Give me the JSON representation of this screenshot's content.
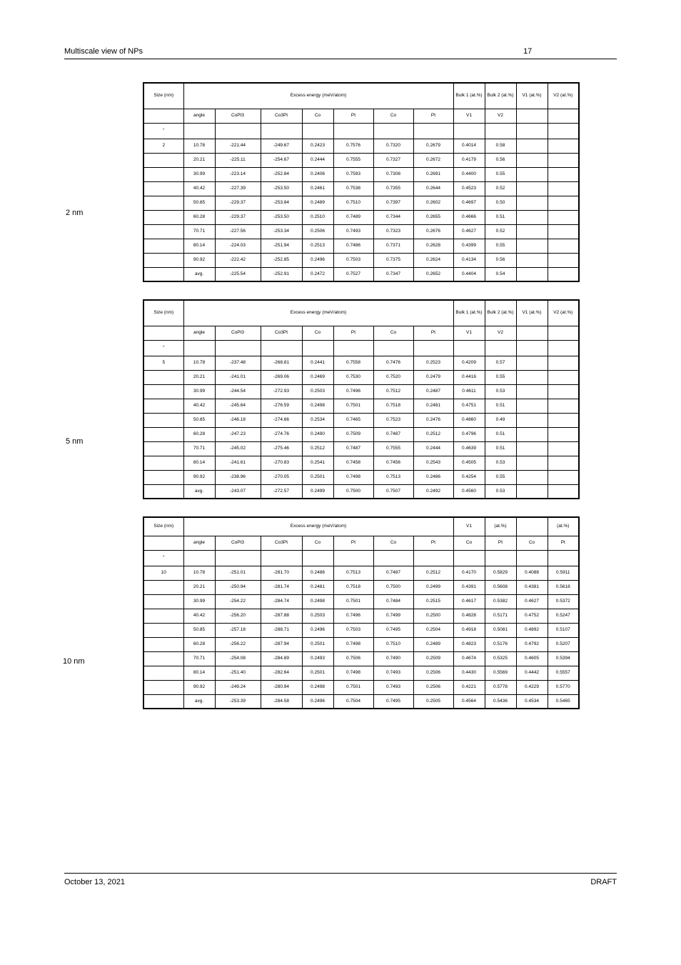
{
  "header": {
    "short_title": "Multiscale view of NPs",
    "page_number": "17"
  },
  "footer": {
    "date": "October 13, 2021",
    "label": "DRAFT"
  },
  "common": {
    "degree_header_html": "°",
    "angle10": "10.78",
    "angle20": "20.21",
    "angle30": "30.99",
    "angle40": "40.42",
    "angle50": "50.85",
    "angle60": "60.28",
    "angle70": "70.71",
    "angle80": "80.14",
    "angle90": "90.92"
  },
  "table2": {
    "caption_label": "2 nm",
    "h_size": "Size (nm)",
    "h_excess": "Excess energy (meV/atom)",
    "h_bulk1": "Bulk 1 (at.%)",
    "h_bulk2": "Bulk 2 (at.%)",
    "h_v1": "V1 (at.%)",
    "h_v2": "V2 (at.%)",
    "subh_angle": "angle",
    "subh_CoPt3": "CoPt3",
    "subh_Co3Pt": "Co3Pt",
    "subh_b1Co": "Co",
    "subh_b1Pt": "Pt",
    "subh_b2Co": "Co",
    "subh_b2Pt": "Pt",
    "subh_v1": "V1",
    "subh_v2": "V2",
    "rows": [
      {
        "size": "2",
        "deg": "°",
        "a": "10.78",
        "c1": "-221.44",
        "c2": "-249.67",
        "b1c": "0.2423",
        "b1p": "0.7576",
        "b2c": "0.7320",
        "b2p": "0.2679",
        "v1": "0.4014",
        "v2": "0.58"
      },
      {
        "size": "",
        "a": "20.21",
        "c1": "-225.11",
        "c2": "-254.67",
        "b1c": "0.2444",
        "b1p": "0.7555",
        "b2c": "0.7327",
        "b2p": "0.2672",
        "v1": "0.4179",
        "v2": "0.56"
      },
      {
        "size": "",
        "a": "30.99",
        "c1": "-223.14",
        "c2": "-252.84",
        "b1c": "0.2406",
        "b1p": "0.7593",
        "b2c": "0.7308",
        "b2p": "0.2691",
        "v1": "0.4400",
        "v2": "0.55"
      },
      {
        "size": "",
        "a": "40.42",
        "c1": "-227.39",
        "c2": "-253.50",
        "b1c": "0.2461",
        "b1p": "0.7538",
        "b2c": "0.7355",
        "b2p": "0.2644",
        "v1": "0.4523",
        "v2": "0.52"
      },
      {
        "size": "",
        "a": "50.85",
        "c1": "-229.37",
        "c2": "-253.84",
        "b1c": "0.2489",
        "b1p": "0.7510",
        "b2c": "0.7397",
        "b2p": "0.2602",
        "v1": "0.4697",
        "v2": "0.50"
      },
      {
        "size": "",
        "a": "60.28",
        "c1": "-229.37",
        "c2": "-253.50",
        "b1c": "0.2510",
        "b1p": "0.7489",
        "b2c": "0.7344",
        "b2p": "0.2655",
        "v1": "0.4666",
        "v2": "0.51"
      },
      {
        "size": "",
        "a": "70.71",
        "c1": "-227.56",
        "c2": "-253.34",
        "b1c": "0.2506",
        "b1p": "0.7493",
        "b2c": "0.7323",
        "b2p": "0.2676",
        "v1": "0.4627",
        "v2": "0.52"
      },
      {
        "size": "",
        "a": "80.14",
        "c1": "-224.03",
        "c2": "-251.94",
        "b1c": "0.2513",
        "b1p": "0.7486",
        "b2c": "0.7371",
        "b2p": "0.2628",
        "v1": "0.4399",
        "v2": "0.55"
      },
      {
        "size": "",
        "a": "90.92",
        "c1": "-222.42",
        "c2": "-252.85",
        "b1c": "0.2496",
        "b1p": "0.7503",
        "b2c": "0.7375",
        "b2p": "0.2624",
        "v1": "0.4134",
        "v2": "0.56"
      },
      {
        "size": "",
        "a": "avg.",
        "c1": "-225.54",
        "c2": "-252.91",
        "b1c": "0.2472",
        "b1p": "0.7527",
        "b2c": "0.7347",
        "b2p": "0.2652",
        "v1": "0.4404",
        "v2": "0.54"
      }
    ]
  },
  "table5": {
    "caption_label": "5 nm",
    "h_size": "Size (nm)",
    "h_excess": "Excess energy (meV/atom)",
    "h_bulk1": "Bulk 1 (at.%)",
    "h_bulk2": "Bulk 2 (at.%)",
    "h_v1": "V1 (at.%)",
    "h_v2": "V2 (at.%)",
    "subh_angle": "angle",
    "subh_CoPt3": "CoPt3",
    "subh_Co3Pt": "Co3Pt",
    "subh_b1Co": "Co",
    "subh_b1Pt": "Pt",
    "subh_b2Co": "Co",
    "subh_b2Pt": "Pt",
    "subh_v1": "V1",
    "subh_v2": "V2",
    "rows": [
      {
        "size": "5",
        "deg": "°",
        "a": "10.78",
        "c1": "-237.48",
        "c2": "-268.81",
        "b1c": "0.2441",
        "b1p": "0.7558",
        "b2c": "0.7476",
        "b2p": "0.2523",
        "v1": "0.4209",
        "v2": "0.57"
      },
      {
        "size": "",
        "a": "20.21",
        "c1": "-241.01",
        "c2": "-269.06",
        "b1c": "0.2469",
        "b1p": "0.7530",
        "b2c": "0.7520",
        "b2p": "0.2479",
        "v1": "0.4416",
        "v2": "0.55"
      },
      {
        "size": "",
        "a": "30.99",
        "c1": "-244.54",
        "c2": "-272.93",
        "b1c": "0.2503",
        "b1p": "0.7496",
        "b2c": "0.7512",
        "b2p": "0.2487",
        "v1": "0.4611",
        "v2": "0.53"
      },
      {
        "size": "",
        "a": "40.42",
        "c1": "-245.64",
        "c2": "-276.59",
        "b1c": "0.2498",
        "b1p": "0.7501",
        "b2c": "0.7518",
        "b2p": "0.2481",
        "v1": "0.4751",
        "v2": "0.51"
      },
      {
        "size": "",
        "a": "50.85",
        "c1": "-246.18",
        "c2": "-274.66",
        "b1c": "0.2534",
        "b1p": "0.7465",
        "b2c": "0.7523",
        "b2p": "0.2476",
        "v1": "0.4860",
        "v2": "0.49"
      },
      {
        "size": "",
        "a": "60.28",
        "c1": "-247.23",
        "c2": "-274.76",
        "b1c": "0.2490",
        "b1p": "0.7509",
        "b2c": "0.7487",
        "b2p": "0.2512",
        "v1": "0.4796",
        "v2": "0.51"
      },
      {
        "size": "",
        "a": "70.71",
        "c1": "-245.02",
        "c2": "-275.46",
        "b1c": "0.2512",
        "b1p": "0.7487",
        "b2c": "0.7555",
        "b2p": "0.2444",
        "v1": "0.4639",
        "v2": "0.51"
      },
      {
        "size": "",
        "a": "80.14",
        "c1": "-241.61",
        "c2": "-270.83",
        "b1c": "0.2541",
        "b1p": "0.7458",
        "b2c": "0.7456",
        "b2p": "0.2543",
        "v1": "0.4505",
        "v2": "0.53"
      },
      {
        "size": "",
        "a": "90.92",
        "c1": "-238.96",
        "c2": "-270.05",
        "b1c": "0.2501",
        "b1p": "0.7498",
        "b2c": "0.7513",
        "b2p": "0.2486",
        "v1": "0.4254",
        "v2": "0.55"
      },
      {
        "size": "",
        "a": "avg.",
        "c1": "-243.07",
        "c2": "-272.57",
        "b1c": "0.2499",
        "b1p": "0.7500",
        "b2c": "0.7507",
        "b2p": "0.2492",
        "v1": "0.4560",
        "v2": "0.53"
      }
    ]
  },
  "table10": {
    "caption_label": "10 nm",
    "h_size": "Size (nm)",
    "h_excess": "Excess energy (meV/atom)",
    "h_v1_pref": "V1",
    "h_v1_sub": "(at.%)",
    "h_v2": "(at.%)",
    "subh_angle": "angle",
    "subh_CoPt3": "CoPt3",
    "subh_Co3Pt": "Co3Pt",
    "subh_b1Co": "Co",
    "subh_b1Pt": "Pt",
    "subh_b2Co": "Co",
    "subh_b2Pt": "Pt",
    "subh_v1Co": "Co",
    "subh_v1Pt": "Pt",
    "subh_v2Co": "Co",
    "subh_v2Pt": "Pt",
    "rows": [
      {
        "size": "10",
        "deg": "°",
        "a": "10.78",
        "c1": "-251.01",
        "c2": "-281.70",
        "b1c": "0.2486",
        "b1p": "0.7513",
        "b2c": "0.7487",
        "b2p": "0.2512",
        "v1c": "0.4170",
        "v1p": "0.5829",
        "v2c": "0.4088",
        "v2p": "0.5911"
      },
      {
        "size": "",
        "a": "20.21",
        "c1": "-250.94",
        "c2": "-281.74",
        "b1c": "0.2481",
        "b1p": "0.7518",
        "b2c": "0.7500",
        "b2p": "0.2499",
        "v1c": "0.4391",
        "v1p": "0.5608",
        "v2c": "0.4381",
        "v2p": "0.5618"
      },
      {
        "size": "",
        "a": "30.99",
        "c1": "-254.22",
        "c2": "-284.74",
        "b1c": "0.2498",
        "b1p": "0.7501",
        "b2c": "0.7484",
        "b2p": "0.2515",
        "v1c": "0.4617",
        "v1p": "0.5382",
        "v2c": "0.4627",
        "v2p": "0.5372"
      },
      {
        "size": "",
        "a": "40.42",
        "c1": "-256.20",
        "c2": "-287.88",
        "b1c": "0.2503",
        "b1p": "0.7496",
        "b2c": "0.7499",
        "b2p": "0.2500",
        "v1c": "0.4828",
        "v1p": "0.5171",
        "v2c": "0.4752",
        "v2p": "0.5247"
      },
      {
        "size": "",
        "a": "50.85",
        "c1": "-257.18",
        "c2": "-288.71",
        "b1c": "0.2496",
        "b1p": "0.7503",
        "b2c": "0.7495",
        "b2p": "0.2504",
        "v1c": "0.4918",
        "v1p": "0.5081",
        "v2c": "0.4892",
        "v2p": "0.5107"
      },
      {
        "size": "",
        "a": "60.28",
        "c1": "-256.22",
        "c2": "-287.94",
        "b1c": "0.2501",
        "b1p": "0.7498",
        "b2c": "0.7510",
        "b2p": "0.2489",
        "v1c": "0.4823",
        "v1p": "0.5176",
        "v2c": "0.4792",
        "v2p": "0.5207"
      },
      {
        "size": "",
        "a": "70.71",
        "c1": "-254.08",
        "c2": "-284.89",
        "b1c": "0.2493",
        "b1p": "0.7506",
        "b2c": "0.7490",
        "b2p": "0.2509",
        "v1c": "0.4674",
        "v1p": "0.5325",
        "v2c": "0.4605",
        "v2p": "0.5394"
      },
      {
        "size": "",
        "a": "80.14",
        "c1": "-251.40",
        "c2": "-282.64",
        "b1c": "0.2501",
        "b1p": "0.7498",
        "b2c": "0.7493",
        "b2p": "0.2506",
        "v1c": "0.4430",
        "v1p": "0.5569",
        "v2c": "0.4442",
        "v2p": "0.5557"
      },
      {
        "size": "",
        "a": "90.92",
        "c1": "-249.24",
        "c2": "-280.94",
        "b1c": "0.2498",
        "b1p": "0.7501",
        "b2c": "0.7493",
        "b2p": "0.2506",
        "v1c": "0.4221",
        "v1p": "0.5778",
        "v2c": "0.4229",
        "v2p": "0.5770"
      },
      {
        "size": "",
        "a": "avg.",
        "c1": "-253.39",
        "c2": "-284.58",
        "b1c": "0.2496",
        "b1p": "0.7504",
        "b2c": "0.7495",
        "b2p": "0.2505",
        "v1c": "0.4564",
        "v1p": "0.5436",
        "v2c": "0.4534",
        "v2p": "0.5465"
      }
    ]
  }
}
